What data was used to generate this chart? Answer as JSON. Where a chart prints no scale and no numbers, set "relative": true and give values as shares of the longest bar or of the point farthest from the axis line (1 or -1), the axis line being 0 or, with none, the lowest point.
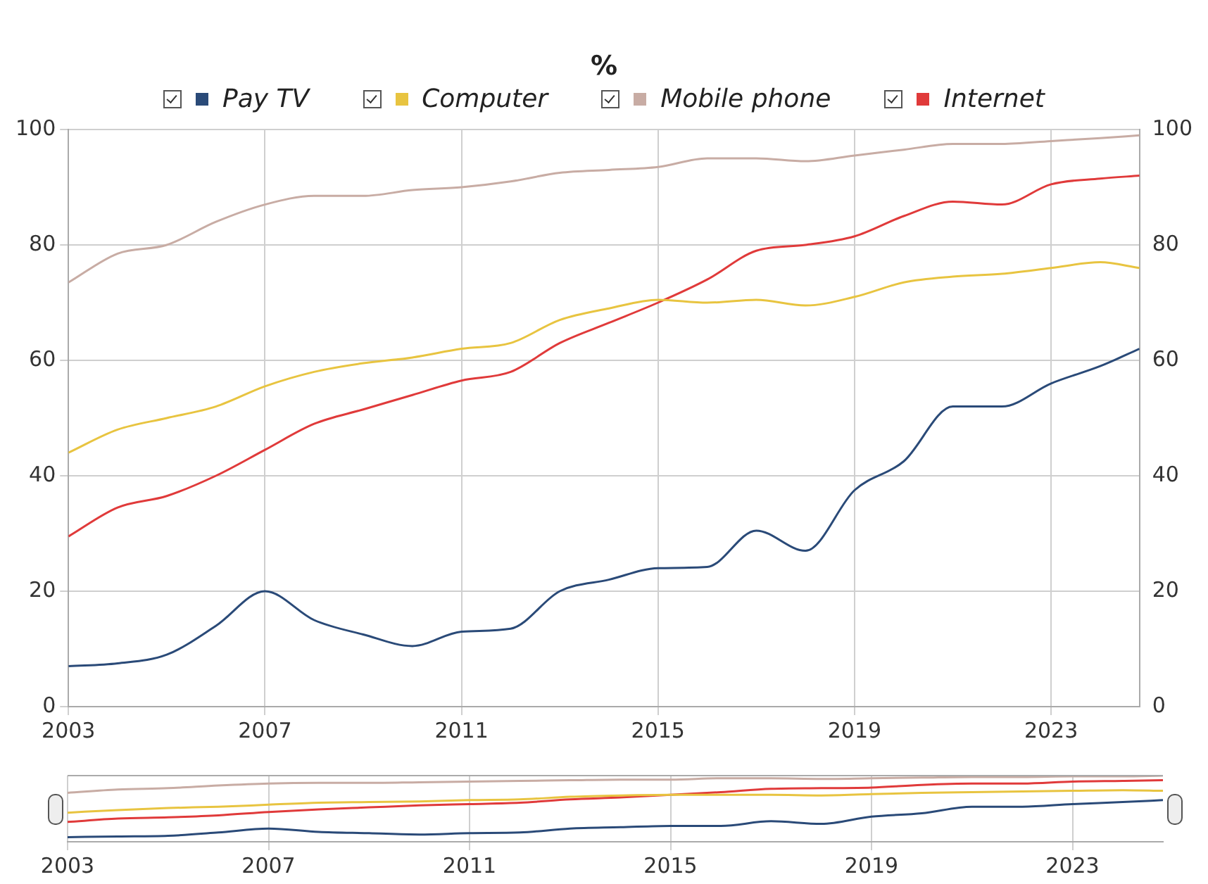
{
  "chart_data": [
    {
      "type": "line",
      "title": "%",
      "x": [
        2003,
        2004,
        2005,
        2006,
        2007,
        2008,
        2009,
        2010,
        2011,
        2012,
        2013,
        2014,
        2015,
        2016,
        2017,
        2018,
        2019,
        2020,
        2021,
        2022,
        2023,
        2024,
        2024.8
      ],
      "series": [
        {
          "name": "Pay TV",
          "color": "#2a4a78",
          "values": [
            7,
            7.5,
            9,
            14,
            20,
            15,
            12.5,
            10.5,
            13,
            13.5,
            20,
            22,
            24,
            24.2,
            30.5,
            27,
            37.5,
            42.5,
            52,
            52,
            56,
            59,
            62
          ]
        },
        {
          "name": "Computer",
          "color": "#e8c440",
          "values": [
            44,
            48,
            50,
            52,
            55.5,
            58,
            59.5,
            60.5,
            62,
            63,
            67,
            69,
            70.5,
            70,
            70.5,
            69.5,
            71,
            73.5,
            74.5,
            75,
            76,
            77,
            76
          ]
        },
        {
          "name": "Mobile phone",
          "color": "#c8aca4",
          "values": [
            73.5,
            78.5,
            80,
            84,
            87,
            88.5,
            88.5,
            89.5,
            90,
            91,
            92.5,
            93,
            93.5,
            95,
            95,
            94.5,
            95.5,
            96.5,
            97.5,
            97.5,
            98,
            98.5,
            99
          ]
        },
        {
          "name": "Internet",
          "color": "#e03a3a",
          "values": [
            29.5,
            34.5,
            36.5,
            40,
            44.5,
            49,
            51.5,
            54,
            56.5,
            58,
            63,
            66.5,
            70,
            74,
            79,
            80,
            81.5,
            85,
            87.5,
            87,
            90.5,
            91.5,
            92
          ]
        }
      ],
      "xlim": [
        2003,
        2024.8
      ],
      "xticks": [
        2003,
        2007,
        2011,
        2015,
        2019,
        2023
      ],
      "ylim": [
        0,
        100
      ],
      "yticks": [
        0,
        20,
        40,
        60,
        80,
        100
      ],
      "y2lim": [
        0,
        100
      ],
      "y2ticks": [
        0,
        20,
        40,
        60,
        80,
        100
      ],
      "grid": true,
      "legend": "top",
      "marker": "none",
      "line_style": "solid"
    },
    {
      "type": "line",
      "x": [
        2003,
        2004,
        2005,
        2006,
        2007,
        2008,
        2009,
        2010,
        2011,
        2012,
        2013,
        2014,
        2015,
        2016,
        2017,
        2018,
        2019,
        2020,
        2021,
        2022,
        2023,
        2024,
        2024.8
      ],
      "series": [
        {
          "color": "#2a4a78",
          "values": [
            0.07,
            0.08,
            0.09,
            0.14,
            0.2,
            0.15,
            0.13,
            0.11,
            0.13,
            0.14,
            0.2,
            0.22,
            0.24,
            0.24,
            0.31,
            0.27,
            0.38,
            0.43,
            0.53,
            0.53,
            0.57,
            0.6,
            0.63
          ]
        },
        {
          "color": "#e8c440",
          "values": [
            0.44,
            0.48,
            0.51,
            0.53,
            0.56,
            0.59,
            0.6,
            0.61,
            0.63,
            0.64,
            0.68,
            0.7,
            0.71,
            0.71,
            0.71,
            0.7,
            0.72,
            0.74,
            0.75,
            0.76,
            0.77,
            0.78,
            0.77
          ]
        },
        {
          "color": "#c8aca4",
          "values": [
            0.74,
            0.79,
            0.81,
            0.85,
            0.88,
            0.89,
            0.89,
            0.9,
            0.91,
            0.92,
            0.93,
            0.94,
            0.94,
            0.96,
            0.96,
            0.95,
            0.96,
            0.97,
            0.98,
            0.98,
            0.99,
            0.99,
            1
          ]
        },
        {
          "color": "#e03a3a",
          "values": [
            0.3,
            0.35,
            0.37,
            0.4,
            0.45,
            0.49,
            0.52,
            0.55,
            0.57,
            0.59,
            0.64,
            0.67,
            0.71,
            0.75,
            0.8,
            0.81,
            0.82,
            0.86,
            0.88,
            0.88,
            0.91,
            0.92,
            0.93
          ]
        }
      ],
      "xlim": [
        2003,
        2024.8
      ],
      "xticks": [
        2003,
        2007,
        2011,
        2015,
        2019,
        2023
      ],
      "relative": true,
      "grid": "x",
      "marker": "none",
      "line_style": "solid"
    }
  ]
}
